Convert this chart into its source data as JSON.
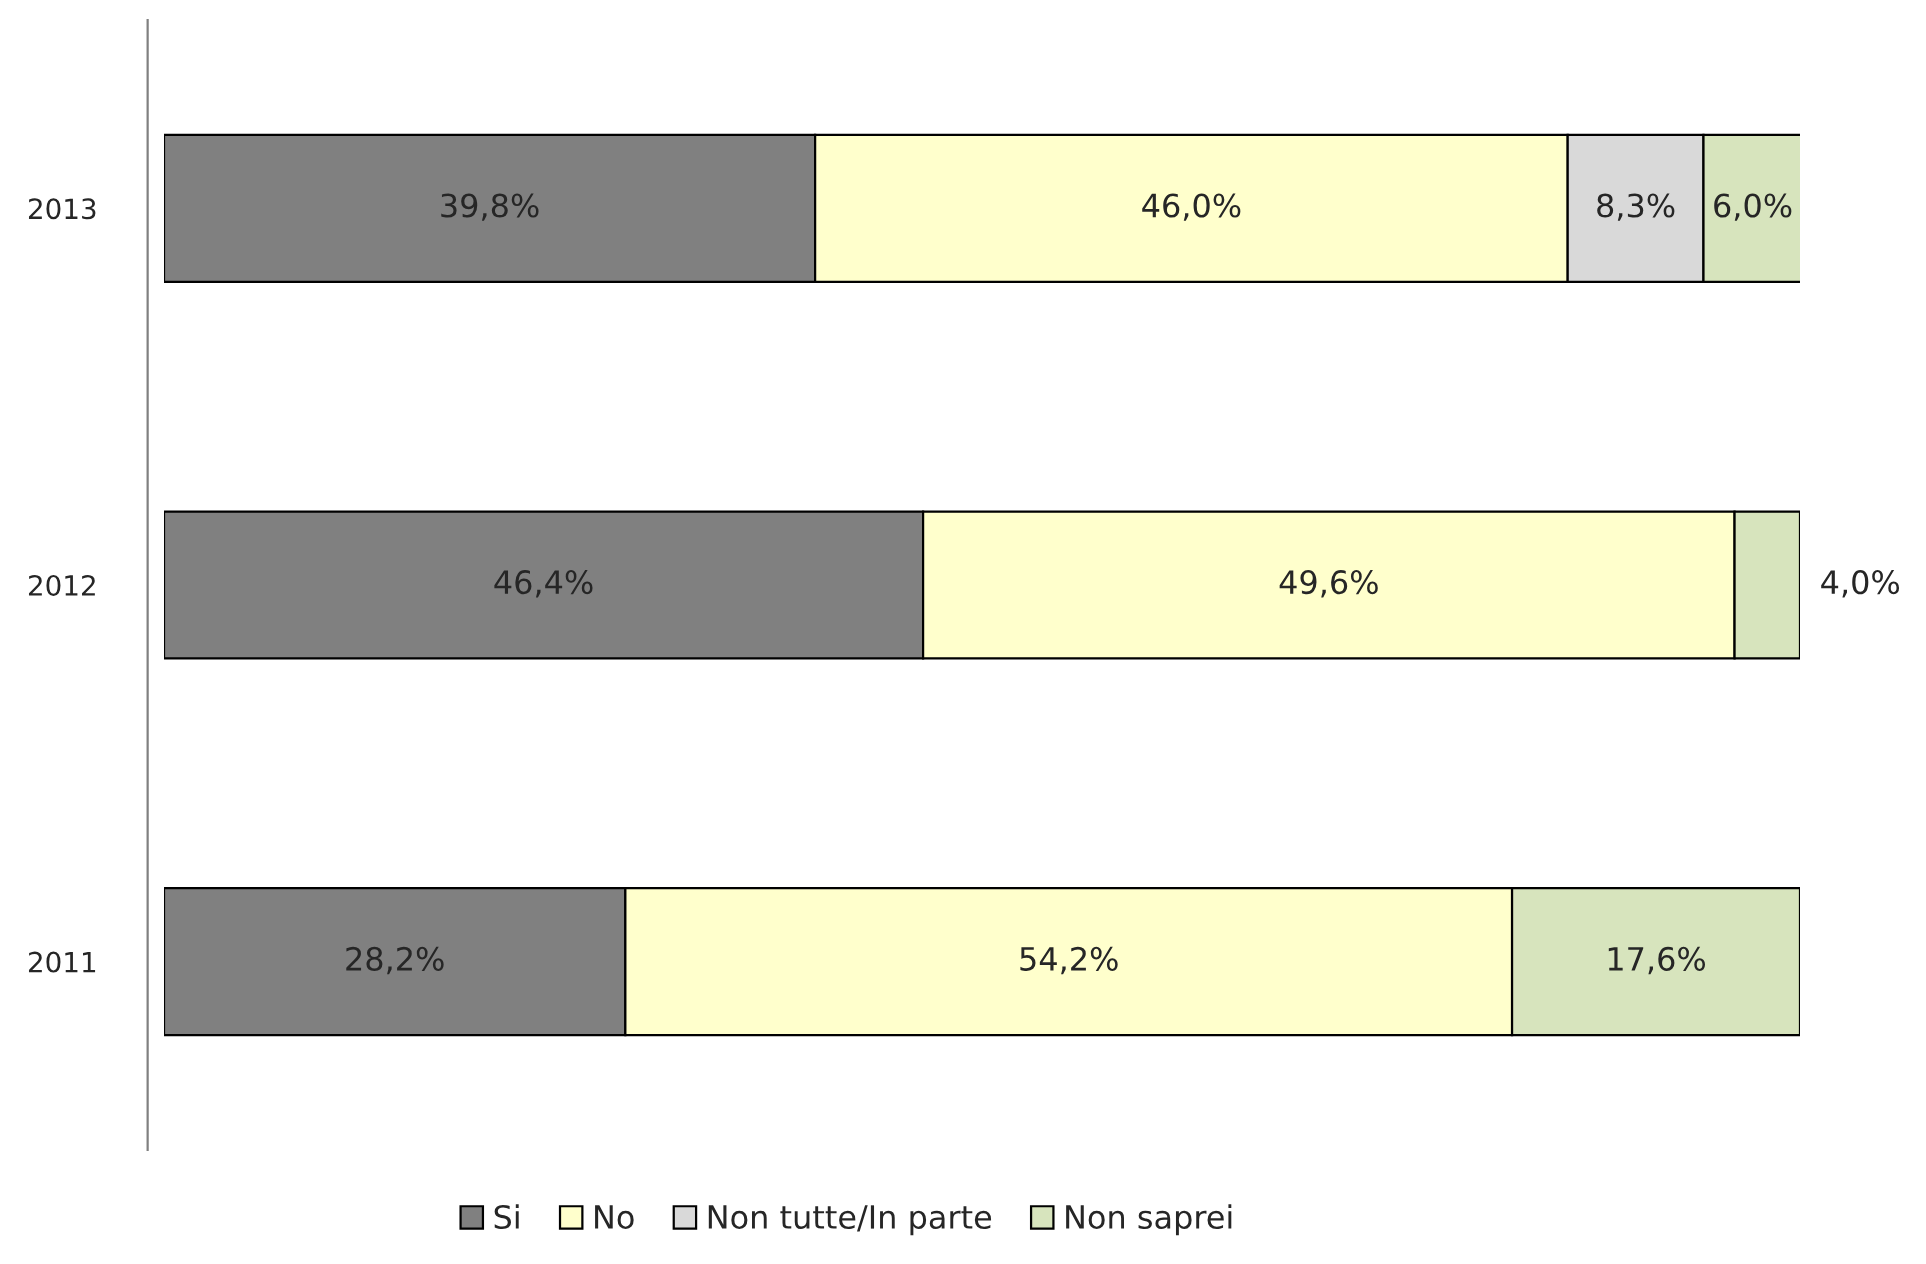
{
  "chart_data": {
    "type": "bar",
    "orientation": "horizontal",
    "stacked": true,
    "categories": [
      "2013",
      "2012",
      "2011"
    ],
    "xlim": [
      0,
      100
    ],
    "tick_labels": "y",
    "legend": "bottom",
    "series": [
      {
        "name": "Si",
        "color": "#808080",
        "values": [
          39.8,
          46.4,
          28.2
        ],
        "value_labels": [
          "39,8%",
          "46,4%",
          "28,2%"
        ]
      },
      {
        "name": "No",
        "color": "#ffffcc",
        "values": [
          46.0,
          49.6,
          54.2
        ],
        "value_labels": [
          "46,0%",
          "49,6%",
          "54,2%"
        ]
      },
      {
        "name": "Non tutte/In parte",
        "color": "#d9d9d9",
        "values": [
          8.3,
          null,
          null
        ],
        "value_labels": [
          "8,3%",
          null,
          null
        ]
      },
      {
        "name": "Non saprei",
        "color": "#d7e4bd",
        "values": [
          6.0,
          4.0,
          17.6
        ],
        "value_labels": [
          "6,0%",
          "4,0%",
          "17,6%"
        ]
      }
    ]
  }
}
